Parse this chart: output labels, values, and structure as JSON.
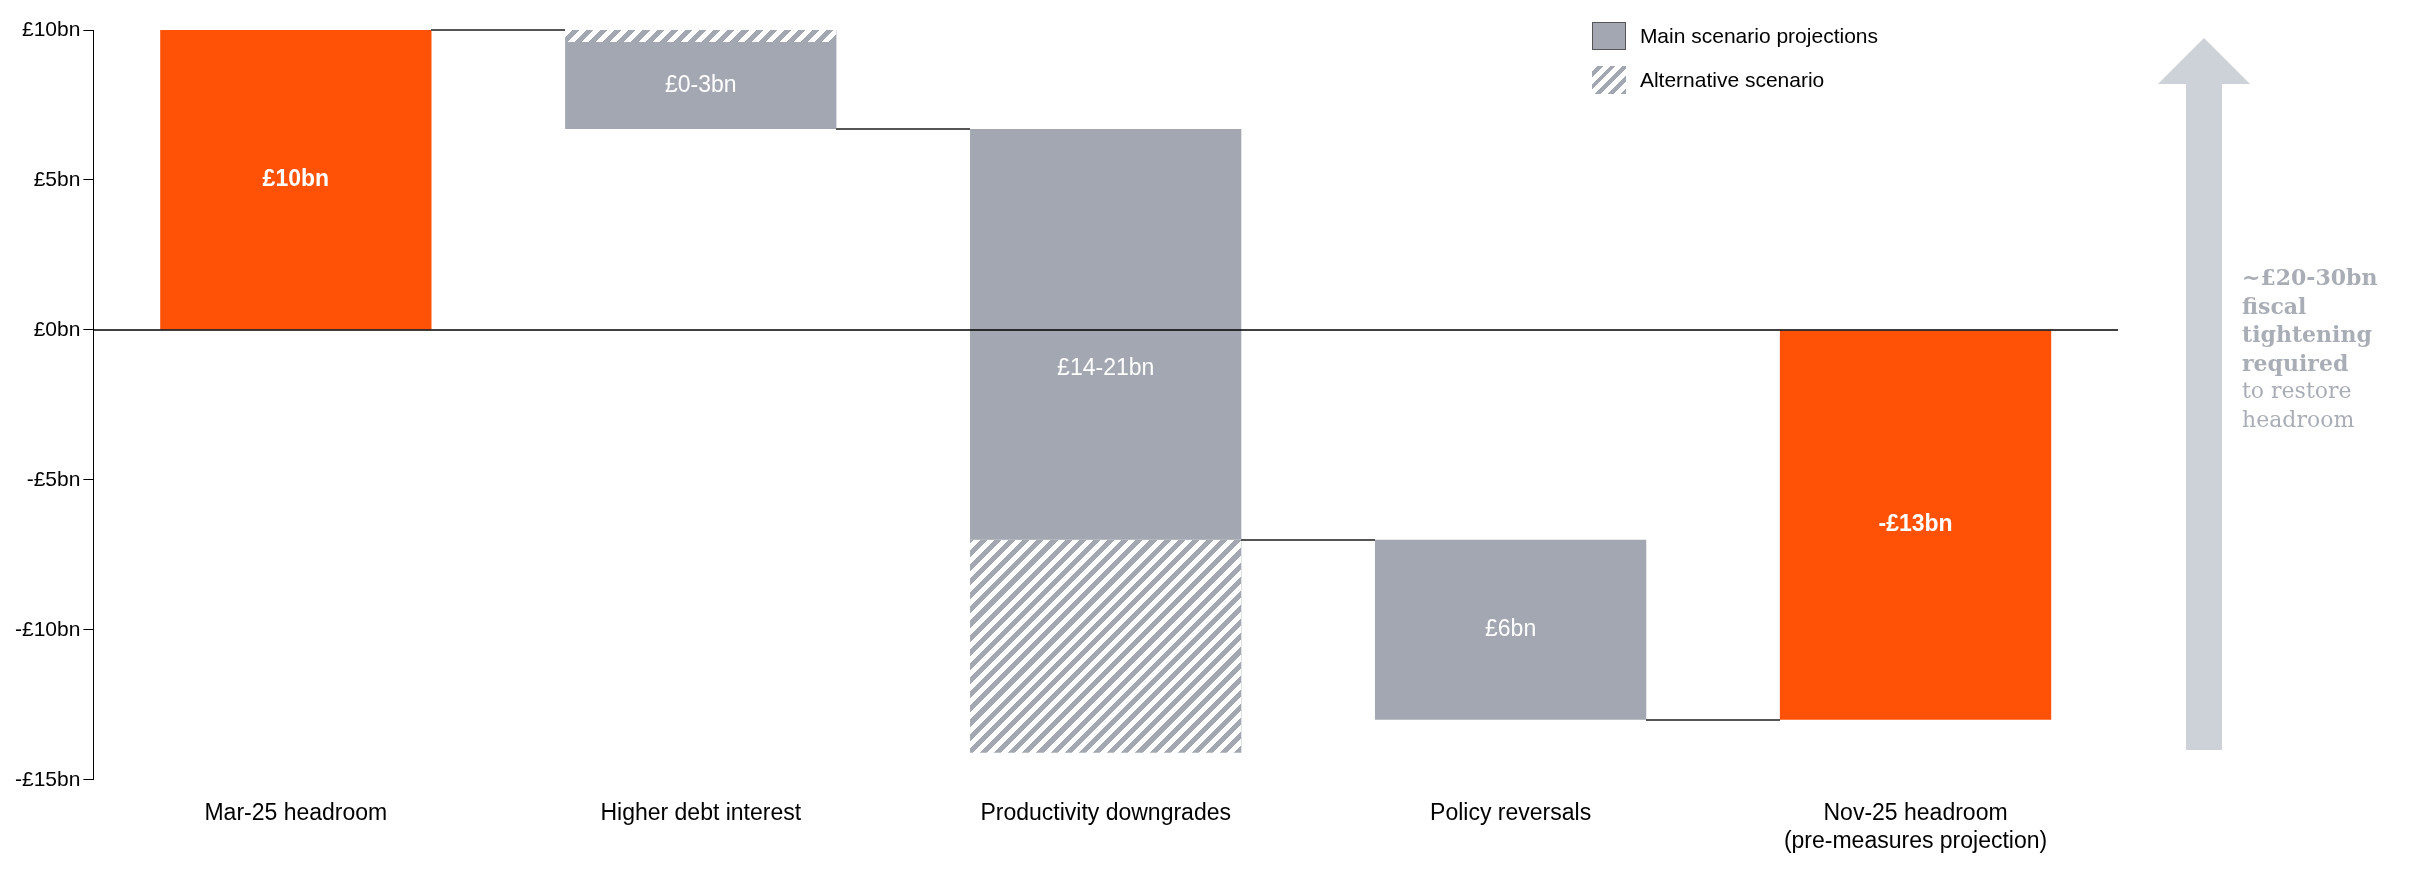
{
  "chart_data": {
    "type": "bar",
    "categories": [
      "Mar-25 headroom",
      "Higher debt interest",
      "Productivity downgrades",
      "Policy reversals",
      "Nov-25 headroom\n(pre-measures projection)"
    ],
    "series": [
      {
        "name": "Main scenario projections",
        "color": "#a2a7b1",
        "colors": [
          "#ff5207",
          "#a2a7b1",
          "#a2a7b1",
          "#a2a7b1",
          "#ff5207"
        ],
        "base": [
          0,
          6.7,
          -7,
          -13,
          0
        ],
        "values": [
          10,
          2.9,
          13.7,
          6,
          -13
        ],
        "value_labels": [
          "£10bn",
          "£0-3bn",
          "£14-21bn",
          "£6bn",
          "-£13bn"
        ]
      },
      {
        "name": "Alternative scenario",
        "color": "#a2a7b1",
        "base": [
          null,
          9.6,
          -7,
          null,
          null
        ],
        "values": [
          null,
          0.4,
          -7.1,
          null,
          null
        ]
      }
    ],
    "ylim": [
      -15,
      10
    ],
    "yticks": [
      {
        "value": -15,
        "label": "-£15bn"
      },
      {
        "value": -10,
        "label": "-£10bn"
      },
      {
        "value": -5,
        "label": "-£5bn"
      },
      {
        "value": 0,
        "label": "£0bn"
      },
      {
        "value": 5,
        "label": "£5bn"
      },
      {
        "value": 10,
        "label": "£10bn"
      }
    ],
    "grid": false,
    "legend": "top right",
    "ref_lines": [
      {
        "axis": "y",
        "value": 0,
        "color": "#000000"
      }
    ],
    "annotations": [
      "~£20-30bn fiscal tightening required",
      "to restore headroom"
    ]
  }
}
